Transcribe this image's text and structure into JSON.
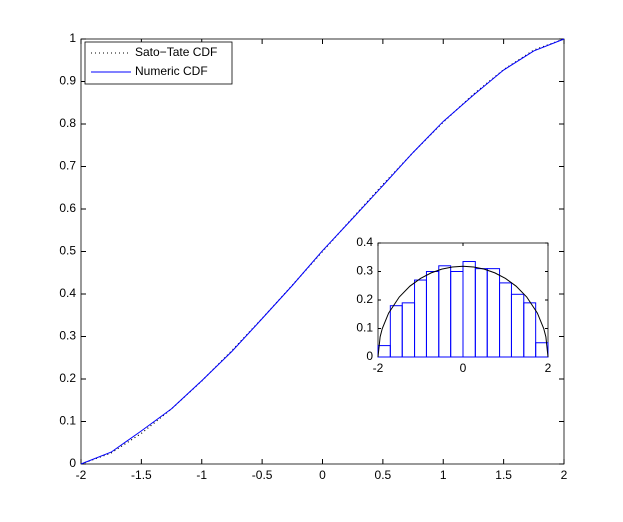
{
  "chart_data": [
    {
      "type": "line",
      "x": [
        -2,
        -1.75,
        -1.5,
        -1.25,
        -1,
        -0.75,
        -0.5,
        -0.25,
        0,
        0.25,
        0.5,
        0.75,
        1,
        1.25,
        1.5,
        1.75,
        2
      ],
      "series": [
        {
          "name": "Sato−Tate CDF",
          "color": "#000000",
          "dash": "dotted",
          "values": [
            0,
            0.026,
            0.0721,
            0.1298,
            0.1955,
            0.267,
            0.3425,
            0.4206,
            0.5,
            0.5794,
            0.6575,
            0.733,
            0.8045,
            0.8702,
            0.9279,
            0.974,
            1
          ]
        },
        {
          "name": "Numeric CDF",
          "color": "#0000ff",
          "dash": "solid",
          "values": [
            0,
            0.028,
            0.078,
            0.13,
            0.196,
            0.265,
            0.342,
            0.42,
            0.502,
            0.578,
            0.655,
            0.733,
            0.806,
            0.868,
            0.927,
            0.972,
            1
          ]
        }
      ],
      "xlim": [
        -2,
        2
      ],
      "ylim": [
        0,
        1
      ],
      "xticks": [
        -2,
        -1.5,
        -1,
        -0.5,
        0,
        0.5,
        1,
        1.5,
        2
      ],
      "yticks": [
        0,
        0.1,
        0.2,
        0.3,
        0.4,
        0.5,
        0.6,
        0.7,
        0.8,
        0.9,
        1
      ],
      "legend": "upper left"
    },
    {
      "type": "histogram",
      "bins": [
        -2,
        -1.71,
        -1.43,
        -1.14,
        -0.86,
        -0.57,
        -0.29,
        0,
        0.29,
        0.57,
        0.86,
        1.14,
        1.43,
        1.71,
        2
      ],
      "values": [
        0.04,
        0.18,
        0.19,
        0.27,
        0.3,
        0.32,
        0.3,
        0.335,
        0.31,
        0.31,
        0.26,
        0.22,
        0.19,
        0.05
      ],
      "color": "#0000ff",
      "curve": {
        "color": "#000000",
        "x": [
          -2,
          -1.95,
          -1.9,
          -1.75,
          -1.5,
          -1.25,
          -1,
          -0.75,
          -0.5,
          -0.25,
          0,
          0.25,
          0.5,
          0.75,
          1,
          1.25,
          1.5,
          1.75,
          1.9,
          1.95,
          2
        ],
        "values": [
          0,
          0.0707,
          0.0994,
          0.1541,
          0.2105,
          0.2485,
          0.2757,
          0.2951,
          0.3082,
          0.3158,
          0.3183,
          0.3158,
          0.3082,
          0.2951,
          0.2757,
          0.2485,
          0.2105,
          0.1541,
          0.0994,
          0.0707,
          0
        ]
      },
      "xlim": [
        -2,
        2
      ],
      "ylim": [
        0,
        0.4
      ],
      "xticks": [
        -2,
        0,
        2
      ],
      "yticks": [
        0,
        0.1,
        0.2,
        0.3,
        0.4
      ]
    }
  ]
}
